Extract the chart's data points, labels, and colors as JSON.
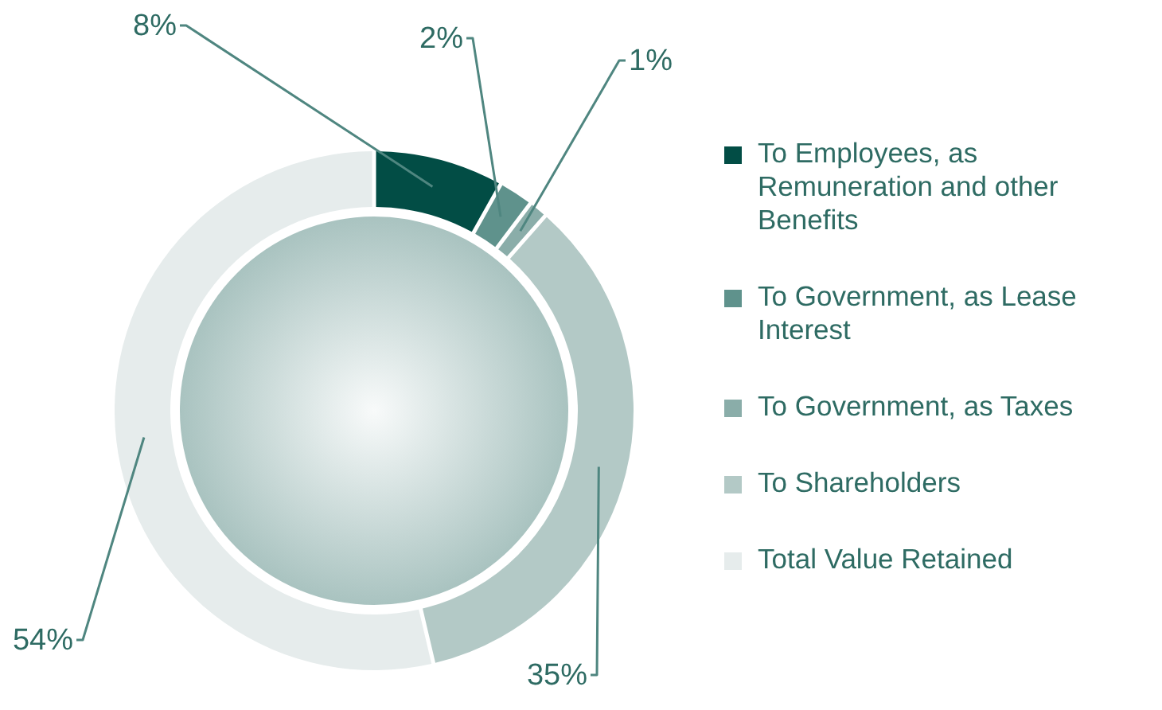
{
  "chart_data": {
    "type": "donut",
    "categories": [
      "To Employees, as Remuneration and other Benefits",
      "To Government, as Lease Interest",
      "To Government, as Taxes",
      "To Shareholders",
      "Total Value Retained"
    ],
    "values": [
      8,
      2,
      1,
      35,
      54
    ],
    "value_labels": [
      "8%",
      "2%",
      "1%",
      "35%",
      "54%"
    ],
    "colors": [
      "#024d45",
      "#5f928c",
      "#8aada9",
      "#b3c9c6",
      "#e6ecec"
    ],
    "legend": "right"
  }
}
